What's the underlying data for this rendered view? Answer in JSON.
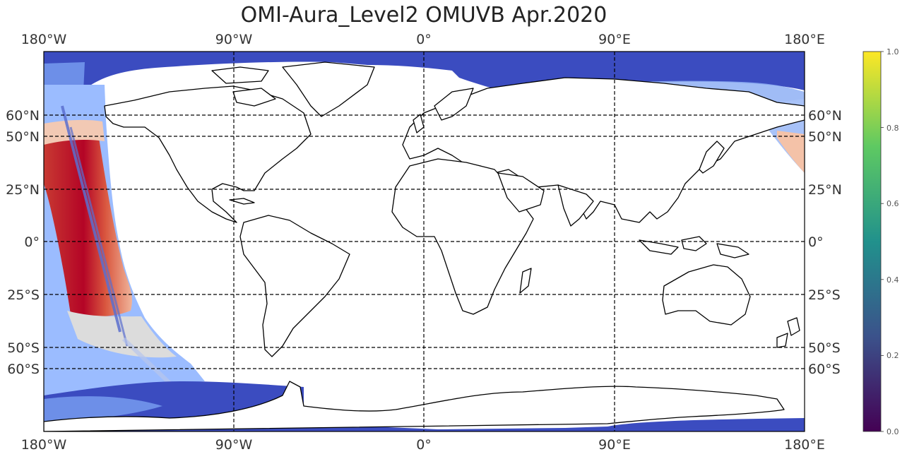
{
  "title": "OMI-Aura_Level2 OMUVB Apr.2020",
  "map": {
    "projection": "PlateCarree",
    "extent": {
      "lon": [
        -180,
        180
      ],
      "lat": [
        -90,
        90
      ]
    },
    "top_lon_labels": [
      "180°W",
      "90°W",
      "0°",
      "90°E",
      "180°E"
    ],
    "bottom_lon_labels": [
      "180°W",
      "90°W",
      "0°",
      "90°E",
      "180°E"
    ],
    "left_lat_labels": [
      "60°N",
      "50°N",
      "25°N",
      "0°",
      "25°S",
      "50°S",
      "60°S"
    ],
    "right_lat_labels": [
      "60°N",
      "50°N",
      "25°N",
      "0°",
      "25°S",
      "50°S",
      "60°S"
    ],
    "gridline_lons": [
      -90,
      0,
      90
    ],
    "gridline_lats": [
      60,
      50,
      25,
      0,
      -25,
      -50,
      -60
    ],
    "gridline_style": "dashed black",
    "land_fill": "white",
    "coastline_color": "#000000"
  },
  "colormap": {
    "name": "coolwarm",
    "low": "#3b4cc0",
    "mid": "#dddddd",
    "high": "#b40426"
  },
  "colorbar": {
    "name": "viridis",
    "min": 0.0,
    "max": 1.0,
    "ticks": [
      "0.0",
      "0.2",
      "0.4",
      "0.6",
      "0.8",
      "1.0"
    ],
    "colors": [
      "#440154",
      "#3b528b",
      "#21918c",
      "#5ec962",
      "#fde725"
    ]
  }
}
